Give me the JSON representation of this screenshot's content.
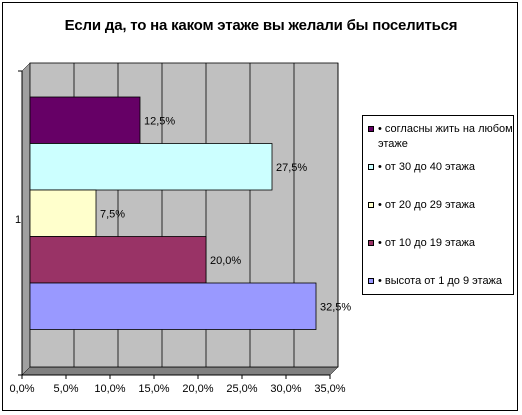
{
  "chart_data": {
    "type": "bar",
    "orientation": "horizontal",
    "title": "Если да, то на каком этаже вы желали бы поселиться",
    "categories": [
      "1"
    ],
    "xlim": [
      0,
      35
    ],
    "x_ticks": [
      "0,0%",
      "5,0%",
      "10,0%",
      "15,0%",
      "20,0%",
      "25,0%",
      "30,0%",
      "35,0%"
    ],
    "x_tick_values": [
      0,
      5,
      10,
      15,
      20,
      25,
      30,
      35
    ],
    "grid": "vertical",
    "legend_position": "right",
    "series": [
      {
        "name": "• высота от 1 до 9 этажа",
        "values": [
          32.5
        ],
        "label": "32,5%",
        "color": "#9999ff"
      },
      {
        "name": "• от 10 до 19 этажа",
        "values": [
          20.0
        ],
        "label": "20,0%",
        "color": "#993366"
      },
      {
        "name": "• от 20 до 29 этажа",
        "values": [
          7.5
        ],
        "label": "7,5%",
        "color": "#ffffcc"
      },
      {
        "name": "• от 30 до 40 этажа",
        "values": [
          27.5
        ],
        "label": "27,5%",
        "color": "#ccffff"
      },
      {
        "name": "• согласны жить на любом этаже",
        "values": [
          12.5
        ],
        "label": "12,5%",
        "color": "#660066"
      }
    ],
    "legend_order": [
      4,
      3,
      2,
      1,
      0
    ]
  }
}
